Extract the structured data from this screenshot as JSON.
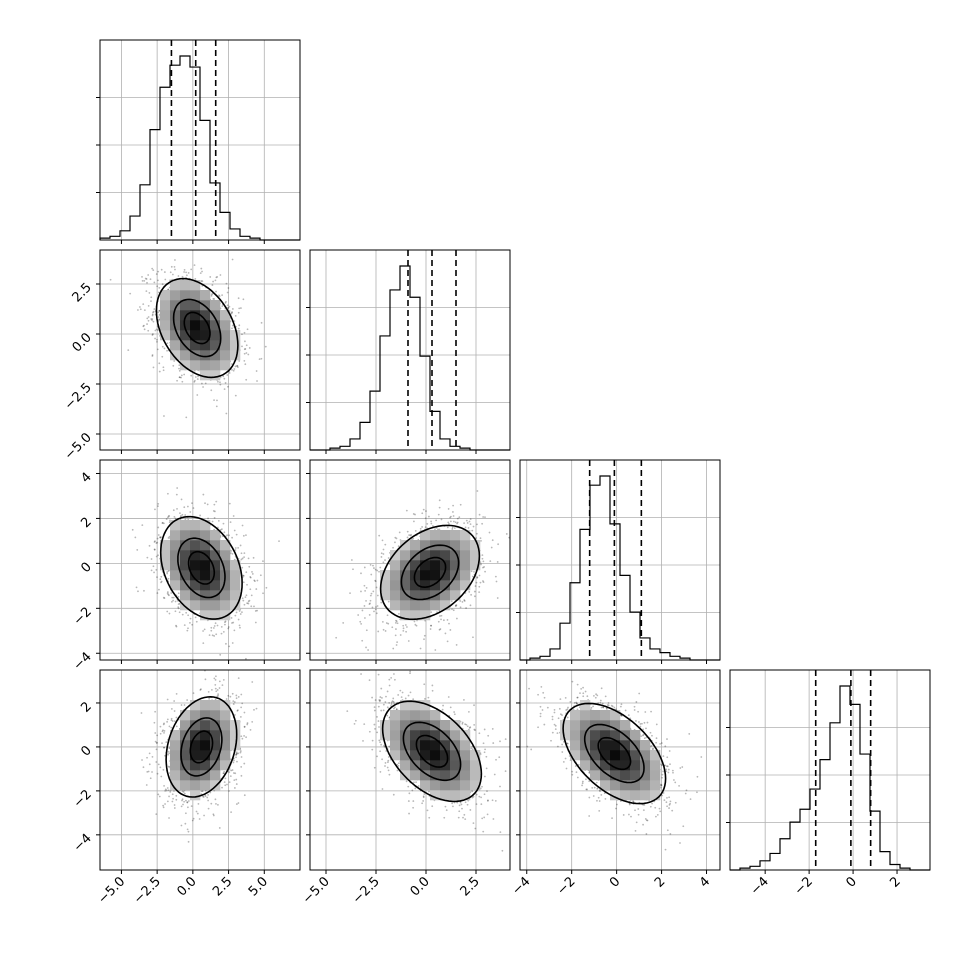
{
  "chart_data": {
    "type": "corner",
    "bins": 20,
    "params": [
      {
        "id": "p0",
        "range": [
          -6.5,
          7.5
        ],
        "ticks": [
          -5.0,
          -2.5,
          0.0,
          2.5,
          5.0
        ],
        "tick_labels": [
          "−5.0",
          "−2.5",
          "0.0",
          "2.5",
          "5.0"
        ],
        "quantiles": [
          -1.5,
          0.2,
          1.6
        ]
      },
      {
        "id": "p1",
        "range": [
          -5.8,
          4.2
        ],
        "ticks": [
          -5.0,
          -2.5,
          0.0,
          2.5
        ],
        "tick_labels": [
          "−5.0",
          "−2.5",
          "0.0",
          "2.5"
        ],
        "quantiles": [
          -0.9,
          0.3,
          1.5
        ]
      },
      {
        "id": "p2",
        "range": [
          -4.3,
          4.6
        ],
        "ticks": [
          -4,
          -2,
          0,
          2,
          4
        ],
        "tick_labels": [
          "−4",
          "−2",
          "0",
          "2",
          "4"
        ],
        "quantiles": [
          -1.2,
          -0.1,
          1.1
        ]
      },
      {
        "id": "p3",
        "range": [
          -5.6,
          3.5
        ],
        "ticks": [
          -4,
          -2,
          0,
          2
        ],
        "tick_labels": [
          "−4",
          "−2",
          "0",
          "2"
        ],
        "quantiles": [
          -1.7,
          -0.1,
          0.8
        ]
      }
    ],
    "histograms": [
      {
        "param": 0,
        "counts": [
          0.01,
          0.02,
          0.05,
          0.13,
          0.3,
          0.6,
          0.83,
          0.95,
          1.0,
          0.94,
          0.65,
          0.31,
          0.15,
          0.06,
          0.02,
          0.01,
          0.0,
          0.0,
          0.0,
          0.0
        ]
      },
      {
        "param": 1,
        "counts": [
          0.0,
          0.0,
          0.01,
          0.02,
          0.06,
          0.15,
          0.32,
          0.62,
          0.87,
          1.0,
          0.83,
          0.51,
          0.21,
          0.06,
          0.02,
          0.01,
          0.0,
          0.0,
          0.0,
          0.0
        ]
      },
      {
        "param": 2,
        "counts": [
          0.0,
          0.01,
          0.02,
          0.06,
          0.2,
          0.42,
          0.71,
          0.95,
          1.0,
          0.74,
          0.46,
          0.26,
          0.12,
          0.06,
          0.04,
          0.02,
          0.01,
          0.0,
          0.0,
          0.0
        ]
      },
      {
        "param": 3,
        "counts": [
          0.0,
          0.01,
          0.02,
          0.05,
          0.09,
          0.17,
          0.26,
          0.33,
          0.44,
          0.6,
          0.8,
          1.0,
          0.9,
          0.63,
          0.32,
          0.1,
          0.03,
          0.01,
          0.0,
          0.0
        ]
      }
    ],
    "pairs": [
      {
        "x": 0,
        "y": 1,
        "center": [
          0.3,
          0.3
        ],
        "scale": [
          1.5,
          1.3
        ],
        "rho": -0.35,
        "contours": [
          0.6,
          1.1,
          1.9
        ]
      },
      {
        "x": 0,
        "y": 2,
        "center": [
          0.6,
          -0.2
        ],
        "scale": [
          1.5,
          1.2
        ],
        "rho": -0.3,
        "contours": [
          0.6,
          1.1,
          1.9
        ]
      },
      {
        "x": 1,
        "y": 2,
        "center": [
          0.2,
          -0.4
        ],
        "scale": [
          1.3,
          1.1
        ],
        "rho": 0.35,
        "contours": [
          0.6,
          1.1,
          1.9
        ]
      },
      {
        "x": 0,
        "y": 3,
        "center": [
          0.6,
          0.0
        ],
        "scale": [
          1.3,
          1.2
        ],
        "rho": 0.25,
        "contours": [
          0.6,
          1.1,
          1.9
        ]
      },
      {
        "x": 1,
        "y": 3,
        "center": [
          0.3,
          -0.2
        ],
        "scale": [
          1.3,
          1.2
        ],
        "rho": -0.45,
        "contours": [
          0.6,
          1.1,
          1.9
        ]
      },
      {
        "x": 2,
        "y": 3,
        "center": [
          -0.1,
          -0.3
        ],
        "scale": [
          1.2,
          1.2
        ],
        "rho": -0.5,
        "contours": [
          0.6,
          1.1,
          1.9
        ]
      }
    ],
    "grid": true,
    "title": "",
    "legend": "none"
  }
}
